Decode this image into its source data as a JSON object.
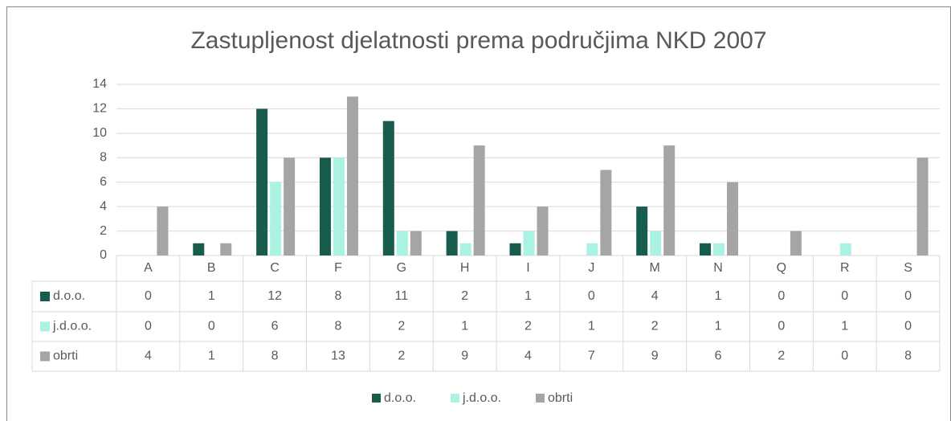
{
  "chart_data": {
    "type": "bar",
    "title": "Zastupljenost djelatnosti prema područjima NKD 2007",
    "categories": [
      "A",
      "B",
      "C",
      "F",
      "G",
      "H",
      "I",
      "J",
      "M",
      "N",
      "Q",
      "R",
      "S"
    ],
    "series": [
      {
        "name": "d.o.o.",
        "color": "#175c4c",
        "values": [
          0,
          1,
          12,
          8,
          11,
          2,
          1,
          0,
          4,
          1,
          0,
          0,
          0
        ]
      },
      {
        "name": "j.d.o.o.",
        "color": "#aaf2e2",
        "values": [
          0,
          0,
          6,
          8,
          2,
          1,
          2,
          1,
          2,
          1,
          0,
          1,
          0
        ]
      },
      {
        "name": "obrti",
        "color": "#a5a5a5",
        "values": [
          4,
          1,
          8,
          13,
          2,
          9,
          4,
          7,
          9,
          6,
          2,
          0,
          8
        ]
      }
    ],
    "ylim": [
      0,
      14
    ],
    "yticks": [
      0,
      2,
      4,
      6,
      8,
      10,
      12,
      14
    ],
    "grid": true,
    "legend": "bottom"
  }
}
